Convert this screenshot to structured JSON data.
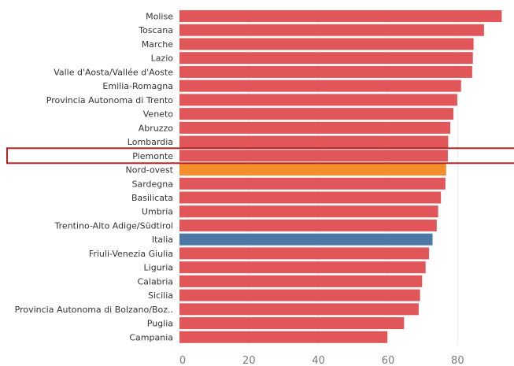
{
  "chart_data": {
    "type": "bar",
    "orientation": "horizontal",
    "categories": [
      "Molise",
      "Toscana",
      "Marche",
      "Lazio",
      "Valle d'Aosta/Vallée d'Aoste",
      "Emilia-Romagna",
      "Provincia Autonoma di Trento",
      "Veneto",
      "Abruzzo",
      "Lombardia",
      "Piemonte",
      "Nord-ovest",
      "Sardegna",
      "Basilicata",
      "Umbria",
      "Trentino-Alto Adige/Südtirol",
      "Italia",
      "Friuli-Venezia Giulia",
      "Liguria",
      "Calabria",
      "Sicilia",
      "Provincia Autonoma di Bolzano/Boz..",
      "Puglia",
      "Campania"
    ],
    "values": [
      92.7,
      87.6,
      84.6,
      84.4,
      84.2,
      81.0,
      79.9,
      78.8,
      77.9,
      77.3,
      77.2,
      76.7,
      76.5,
      75.2,
      74.4,
      74.0,
      72.8,
      71.8,
      70.8,
      69.8,
      69.2,
      68.8,
      64.6,
      59.8
    ],
    "colors": {
      "default": "#e15759",
      "Nord-ovest": "#f28e2b",
      "Italia": "#4e79a7"
    },
    "highlighted_category": "Piemonte",
    "highlight_color": "#b22222",
    "x_ticks": [
      0,
      20,
      40,
      60,
      80
    ],
    "xlim": [
      0,
      96
    ],
    "grid": true,
    "title": "",
    "xlabel": "",
    "ylabel": ""
  }
}
